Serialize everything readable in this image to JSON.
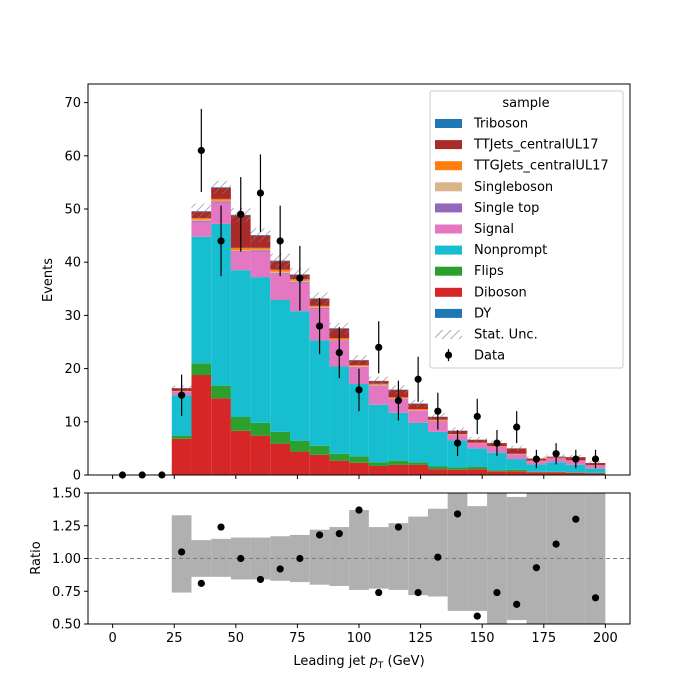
{
  "chart_data": {
    "type": "bar",
    "stacked": true,
    "xlabel": "Leading jet  pT (GeV)",
    "xlabel_main": "Leading jet ",
    "xlabel_p": "p",
    "xlabel_sub": "T",
    "xlabel_unit": " (GeV)",
    "ylabel": "Events",
    "xlim": [
      -10,
      210
    ],
    "ylim": [
      0,
      73.5
    ],
    "xticks": [
      0,
      25,
      50,
      75,
      100,
      125,
      150,
      175,
      200
    ],
    "yticks": [
      0,
      10,
      20,
      30,
      40,
      50,
      60,
      70
    ],
    "bin_edges": [
      0,
      8,
      16,
      24,
      32,
      40,
      48,
      56,
      64,
      72,
      80,
      88,
      96,
      104,
      112,
      120,
      128,
      136,
      144,
      152,
      160,
      168,
      176,
      184,
      192,
      200
    ],
    "legend": {
      "title": "sample",
      "placement": "top-right"
    },
    "series": [
      {
        "name": "DY",
        "color": "#1f77b4",
        "values": [
          0,
          0,
          0,
          0,
          0,
          0,
          0,
          0,
          0,
          0,
          0,
          0,
          0,
          0,
          0,
          0,
          0,
          0,
          0,
          0,
          0,
          0,
          0,
          0,
          0
        ]
      },
      {
        "name": "Diboson",
        "color": "#d62728",
        "values": [
          0,
          0,
          0,
          6.8,
          18.8,
          14.4,
          8.3,
          7.4,
          5.9,
          4.4,
          3.8,
          2.7,
          2.3,
          1.7,
          1.9,
          1.9,
          1.1,
          1.0,
          1.1,
          0.7,
          0.7,
          0.5,
          0.5,
          0.4,
          0.3
        ]
      },
      {
        "name": "Flips",
        "color": "#2ca02c",
        "values": [
          0,
          0,
          0,
          0.6,
          2.2,
          2.4,
          2.6,
          2.4,
          2.2,
          2.0,
          1.7,
          1.3,
          1.2,
          0.7,
          0.8,
          0.5,
          0.5,
          0.4,
          0.4,
          0.2,
          0.3,
          0.1,
          0.1,
          0.1,
          0.1
        ]
      },
      {
        "name": "Nonprompt",
        "color": "#17becf",
        "values": [
          0,
          0,
          0,
          7.6,
          23.8,
          30.4,
          27.6,
          27.4,
          24.8,
          24.4,
          19.8,
          16.4,
          13.6,
          10.8,
          9.0,
          7.4,
          6.5,
          5.1,
          3.5,
          3.3,
          2.0,
          1.4,
          1.8,
          1.4,
          0.8
        ]
      },
      {
        "name": "Signal",
        "color": "#e377c2",
        "values": [
          0,
          0,
          0,
          0.6,
          2.8,
          4.0,
          3.5,
          4.8,
          5.0,
          5.4,
          6.0,
          4.8,
          3.2,
          3.6,
          2.6,
          2.3,
          2.0,
          1.0,
          1.0,
          1.1,
          0.9,
          0.6,
          0.8,
          0.8,
          0.6
        ]
      },
      {
        "name": "Single top",
        "color": "#9467bd",
        "values": [
          0,
          0,
          0,
          0.05,
          0.2,
          0.2,
          0.1,
          0.2,
          0.1,
          0.1,
          0.1,
          0.1,
          0.05,
          0.05,
          0.05,
          0.05,
          0.05,
          0.05,
          0,
          0,
          0,
          0,
          0,
          0,
          0
        ]
      },
      {
        "name": "Singleboson",
        "color": "#dbb58a",
        "values": [
          0,
          0,
          0,
          0.05,
          0.2,
          0.2,
          0.2,
          0.2,
          0.2,
          0.2,
          0.2,
          0.1,
          0.1,
          0.1,
          0.05,
          0.05,
          0.05,
          0.05,
          0,
          0,
          0,
          0,
          0,
          0,
          0
        ]
      },
      {
        "name": "TTGJets_centralUL17",
        "color": "#ff7f0e",
        "values": [
          0,
          0,
          0,
          0.1,
          0.3,
          0.3,
          0.4,
          0.3,
          0.4,
          0.3,
          0.2,
          0.3,
          0.2,
          0.2,
          0.2,
          0.2,
          0.2,
          0.1,
          0.1,
          0.1,
          0.1,
          0.1,
          0.05,
          0.05,
          0.05
        ]
      },
      {
        "name": "TTJets_centralUL17",
        "color": "#aa2a2a",
        "values": [
          0,
          0,
          0,
          0.5,
          1.2,
          2.1,
          6.1,
          2.3,
          1.6,
          0.8,
          1.3,
          1.8,
          0.9,
          0.5,
          1.4,
          1.0,
          0.5,
          0.6,
          0.5,
          0.6,
          1.0,
          0.4,
          0.2,
          0.6,
          0.4
        ]
      },
      {
        "name": "Triboson",
        "color": "#1f77b4",
        "values": [
          0,
          0,
          0,
          0.05,
          0.1,
          0.1,
          0.1,
          0.1,
          0.1,
          0.1,
          0.1,
          0.1,
          0.05,
          0.05,
          0.05,
          0.05,
          0.05,
          0.05,
          0.05,
          0,
          0,
          0,
          0,
          0,
          0
        ]
      }
    ],
    "stat_unc": {
      "name": "Stat. Unc.",
      "values": [
        0,
        0,
        0,
        0.5,
        1.4,
        1.2,
        1.3,
        1.3,
        1.3,
        1.2,
        1.1,
        1.0,
        0.9,
        0.8,
        0.8,
        0.7,
        0.7,
        0.6,
        0.5,
        0.5,
        0.5,
        0.4,
        0.4,
        0.4,
        0.3
      ]
    },
    "data_points": {
      "name": "Data",
      "x": [
        4,
        12,
        20,
        28,
        36,
        44,
        52,
        60,
        68,
        76,
        84,
        92,
        100,
        108,
        116,
        124,
        132,
        140,
        148,
        156,
        164,
        172,
        180,
        188,
        196
      ],
      "y": [
        0,
        0,
        0,
        15,
        61,
        44,
        49,
        53,
        44,
        37,
        28,
        23,
        16,
        24,
        14,
        18,
        12,
        6,
        11,
        6,
        9,
        3,
        4,
        3,
        3
      ]
    },
    "ratio_panel": {
      "ylabel": "Ratio",
      "ylim": [
        0.5,
        1.5
      ],
      "yticks": [
        "0.50",
        "0.75",
        "1.00",
        "1.25",
        "1.50"
      ],
      "reference_line": 1.0,
      "x": [
        28,
        36,
        44,
        52,
        60,
        68,
        76,
        84,
        92,
        100,
        108,
        116,
        124,
        132,
        140,
        148,
        156,
        164,
        172,
        180,
        188,
        196
      ],
      "y": [
        1.05,
        0.81,
        1.24,
        1.0,
        0.84,
        0.92,
        1.0,
        1.18,
        1.19,
        1.37,
        0.74,
        1.24,
        0.74,
        1.01,
        1.34,
        0.56,
        0.74,
        0.65,
        0.93,
        1.11,
        1.3,
        0.7
      ],
      "band_low": [
        0.74,
        0.86,
        0.86,
        0.84,
        0.84,
        0.83,
        0.82,
        0.8,
        0.79,
        0.76,
        0.77,
        0.76,
        0.72,
        0.71,
        0.6,
        0.6,
        0.5,
        0.53,
        0.5,
        0.5,
        0.5,
        0.5
      ],
      "band_high": [
        1.33,
        1.14,
        1.15,
        1.16,
        1.16,
        1.17,
        1.18,
        1.22,
        1.24,
        1.37,
        1.24,
        1.27,
        1.32,
        1.38,
        1.5,
        1.4,
        1.5,
        1.47,
        1.5,
        1.5,
        1.5,
        1.5
      ]
    }
  }
}
